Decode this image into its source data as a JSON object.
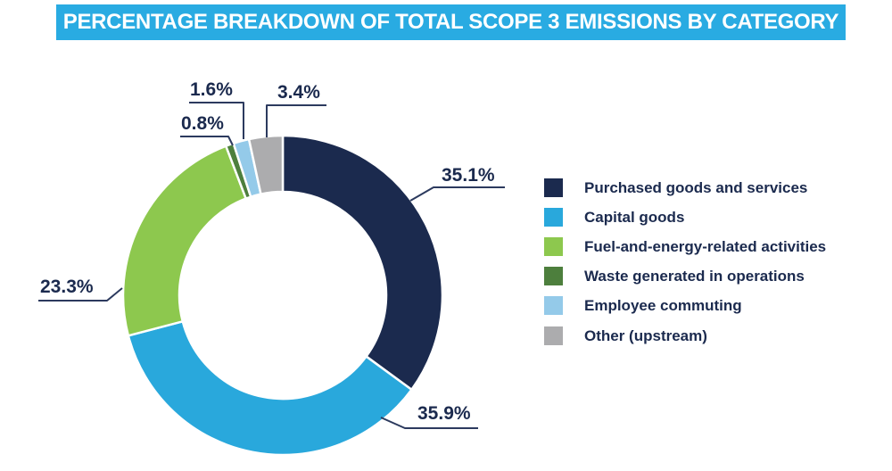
{
  "title": "PERCENTAGE BREAKDOWN OF TOTAL SCOPE 3 EMISSIONS BY CATEGORY",
  "colors": {
    "banner_background": "#29ABE2",
    "banner_text": "#FFFFFF",
    "label_text": "#1B2A4E",
    "leader_line": "#2C3A5E",
    "slice_gap_stroke": "#FFFFFF",
    "page_background": "#FFFFFF"
  },
  "chart_data": {
    "type": "pie",
    "subtype": "donut",
    "title": "PERCENTAGE BREAKDOWN OF TOTAL SCOPE 3 EMISSIONS BY CATEGORY",
    "unit": "%",
    "direction": "clockwise",
    "start_angle_deg": 0,
    "legend_position": "right",
    "donut_hole": true,
    "categories": [
      "Purchased goods and services",
      "Capital goods",
      "Fuel-and-energy-related activities",
      "Waste generated in operations",
      "Employee commuting",
      "Other (upstream)"
    ],
    "values": [
      35.1,
      35.9,
      23.3,
      0.8,
      1.6,
      3.4
    ],
    "labels": [
      "35.1%",
      "35.9%",
      "23.3%",
      "0.8%",
      "1.6%",
      "3.4%"
    ],
    "slice_colors": [
      "#1B2A4E",
      "#29A8DC",
      "#8DC84E",
      "#4D7F3D",
      "#94CAE9",
      "#ACACAE"
    ]
  }
}
